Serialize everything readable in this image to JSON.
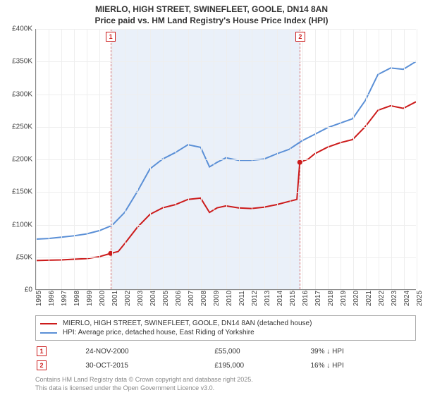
{
  "title": {
    "line1": "MIERLO, HIGH STREET, SWINEFLEET, GOOLE, DN14 8AN",
    "line2": "Price paid vs. HM Land Registry's House Price Index (HPI)"
  },
  "chart": {
    "type": "line",
    "background_color": "#ffffff",
    "grid_color": "#eeeeee",
    "axis_color": "#888888",
    "x": {
      "min": 1995,
      "max": 2025,
      "ticks": [
        1995,
        1996,
        1997,
        1998,
        1999,
        2000,
        2001,
        2002,
        2003,
        2004,
        2005,
        2006,
        2007,
        2008,
        2009,
        2010,
        2011,
        2012,
        2013,
        2014,
        2015,
        2016,
        2017,
        2018,
        2019,
        2020,
        2021,
        2022,
        2023,
        2024,
        2025
      ]
    },
    "y": {
      "min": 0,
      "max": 400000,
      "ticks": [
        {
          "v": 0,
          "label": "£0"
        },
        {
          "v": 50000,
          "label": "£50K"
        },
        {
          "v": 100000,
          "label": "£100K"
        },
        {
          "v": 150000,
          "label": "£150K"
        },
        {
          "v": 200000,
          "label": "£200K"
        },
        {
          "v": 250000,
          "label": "£250K"
        },
        {
          "v": 300000,
          "label": "£300K"
        },
        {
          "v": 350000,
          "label": "£350K"
        },
        {
          "v": 400000,
          "label": "£400K"
        }
      ]
    },
    "shaded_region": {
      "xmin": 2000.9,
      "xmax": 2015.83,
      "border_color": "#d46a6a"
    },
    "series": [
      {
        "name": "price_paid",
        "label": "MIERLO, HIGH STREET, SWINEFLEET, GOOLE, DN14 8AN (detached house)",
        "color": "#cc1b1b",
        "line_width": 2,
        "points": [
          [
            1995,
            44000
          ],
          [
            1996,
            44500
          ],
          [
            1997,
            45000
          ],
          [
            1998,
            46000
          ],
          [
            1999,
            47000
          ],
          [
            2000,
            50000
          ],
          [
            2000.9,
            55000
          ],
          [
            2001.5,
            58000
          ],
          [
            2002,
            70000
          ],
          [
            2003,
            95000
          ],
          [
            2004,
            115000
          ],
          [
            2005,
            125000
          ],
          [
            2006,
            130000
          ],
          [
            2007,
            138000
          ],
          [
            2008,
            140000
          ],
          [
            2008.7,
            118000
          ],
          [
            2009.3,
            125000
          ],
          [
            2010,
            128000
          ],
          [
            2011,
            125000
          ],
          [
            2012,
            124000
          ],
          [
            2013,
            126000
          ],
          [
            2014,
            130000
          ],
          [
            2015,
            135000
          ],
          [
            2015.6,
            138000
          ],
          [
            2015.83,
            195000
          ],
          [
            2016.5,
            200000
          ],
          [
            2017,
            208000
          ],
          [
            2018,
            218000
          ],
          [
            2019,
            225000
          ],
          [
            2020,
            230000
          ],
          [
            2021,
            250000
          ],
          [
            2022,
            275000
          ],
          [
            2023,
            282000
          ],
          [
            2024,
            278000
          ],
          [
            2025,
            288000
          ]
        ]
      },
      {
        "name": "hpi",
        "label": "HPI: Average price, detached house, East Riding of Yorkshire",
        "color": "#5a8fd6",
        "line_width": 2,
        "points": [
          [
            1995,
            77000
          ],
          [
            1996,
            78000
          ],
          [
            1997,
            80000
          ],
          [
            1998,
            82000
          ],
          [
            1999,
            85000
          ],
          [
            2000,
            90000
          ],
          [
            2001,
            98000
          ],
          [
            2002,
            118000
          ],
          [
            2003,
            150000
          ],
          [
            2004,
            185000
          ],
          [
            2005,
            200000
          ],
          [
            2006,
            210000
          ],
          [
            2007,
            222000
          ],
          [
            2008,
            218000
          ],
          [
            2008.7,
            188000
          ],
          [
            2009.3,
            195000
          ],
          [
            2010,
            202000
          ],
          [
            2011,
            198000
          ],
          [
            2012,
            198000
          ],
          [
            2013,
            200000
          ],
          [
            2014,
            208000
          ],
          [
            2015,
            215000
          ],
          [
            2016,
            228000
          ],
          [
            2017,
            238000
          ],
          [
            2018,
            248000
          ],
          [
            2019,
            255000
          ],
          [
            2020,
            262000
          ],
          [
            2021,
            290000
          ],
          [
            2022,
            330000
          ],
          [
            2023,
            340000
          ],
          [
            2024,
            338000
          ],
          [
            2025,
            350000
          ]
        ]
      }
    ],
    "markers": [
      {
        "n": 1,
        "x": 2000.9,
        "y": 55000,
        "color": "#cc1b1b"
      },
      {
        "n": 2,
        "x": 2015.83,
        "y": 195000,
        "color": "#cc1b1b"
      }
    ]
  },
  "legend": {
    "rows": [
      {
        "color": "#cc1b1b",
        "label": "MIERLO, HIGH STREET, SWINEFLEET, GOOLE, DN14 8AN (detached house)"
      },
      {
        "color": "#5a8fd6",
        "label": "HPI: Average price, detached house, East Riding of Yorkshire"
      }
    ]
  },
  "marker_table": {
    "rows": [
      {
        "n": 1,
        "color": "#cc1b1b",
        "date": "24-NOV-2000",
        "price": "£55,000",
        "delta": "39% ↓ HPI"
      },
      {
        "n": 2,
        "color": "#cc1b1b",
        "date": "30-OCT-2015",
        "price": "£195,000",
        "delta": "16% ↓ HPI"
      }
    ]
  },
  "footer": {
    "line1": "Contains HM Land Registry data © Crown copyright and database right 2025.",
    "line2": "This data is licensed under the Open Government Licence v3.0."
  }
}
